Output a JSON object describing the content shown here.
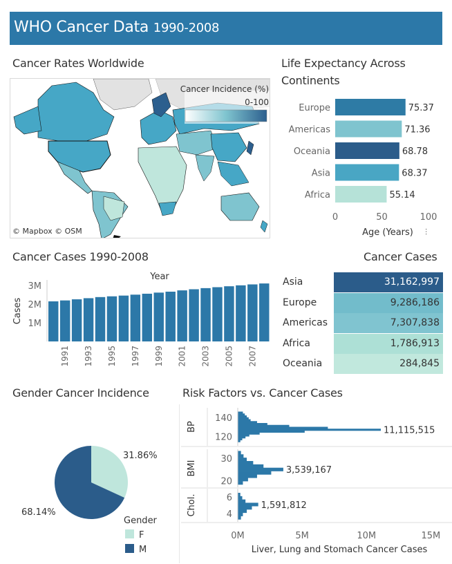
{
  "header": {
    "title": "WHO Cancer Data",
    "years": "1990-2008"
  },
  "map": {
    "title": "Cancer Rates Worldwide",
    "legend_title": "Cancer Incidence (%)",
    "legend_range": "0-100",
    "attribution": "© Mapbox © OSM",
    "colors": {
      "ocean": "#ffffff",
      "land_nodata": "#e2e2e2",
      "low": "#bfe6dc",
      "mid": "#46a7c6",
      "high": "#2c5f8e"
    }
  },
  "life_expectancy": {
    "title_line1": "Life Expectancy Across",
    "title_line2": "Continents",
    "chart_data": {
      "type": "bar",
      "orientation": "horizontal",
      "categories": [
        "Europe",
        "Americas",
        "Oceania",
        "Asia",
        "Africa"
      ],
      "values": [
        75.37,
        71.36,
        68.78,
        68.37,
        55.14
      ],
      "value_labels": [
        "75.37",
        "71.36",
        "68.78",
        "68.37",
        "55.14"
      ],
      "colors": [
        "#2e7ba5",
        "#7fc4cf",
        "#2b5c8a",
        "#49a6c4",
        "#b6e2d8"
      ],
      "xlabel": "Age (Years)",
      "xlim": [
        0,
        100
      ],
      "xticks": [
        "0",
        "50",
        "100"
      ]
    }
  },
  "cases_by_year": {
    "title": "Cancer Cases 1990-2008",
    "chart_data": {
      "type": "bar",
      "x": [
        1990,
        1991,
        1992,
        1993,
        1994,
        1995,
        1996,
        1997,
        1998,
        1999,
        2000,
        2001,
        2002,
        2003,
        2004,
        2005,
        2006,
        2007,
        2008
      ],
      "values": [
        2150000,
        2200000,
        2260000,
        2320000,
        2380000,
        2420000,
        2460000,
        2510000,
        2560000,
        2620000,
        2670000,
        2740000,
        2800000,
        2860000,
        2910000,
        2960000,
        3010000,
        3060000,
        3110000
      ],
      "xlabel": "Year",
      "ylabel": "Cases",
      "ylim": [
        0,
        3300000
      ],
      "yticks": [
        {
          "v": 1000000,
          "label": "1M"
        },
        {
          "v": 2000000,
          "label": "2M"
        },
        {
          "v": 3000000,
          "label": "3M"
        }
      ],
      "xtick_labels": [
        "1991",
        "1993",
        "1995",
        "1997",
        "1999",
        "2001",
        "2003",
        "2005",
        "2007"
      ],
      "color": "#2c78a8"
    }
  },
  "cases_table": {
    "title": "Cancer Cases",
    "chart_data": {
      "type": "table",
      "rows": [
        {
          "region": "Asia",
          "value": "31,162,997",
          "color": "#2b5c8a",
          "text_color": "#ffffff"
        },
        {
          "region": "Europe",
          "value": "9,286,186",
          "color": "#72bccb",
          "text_color": "#333333"
        },
        {
          "region": "Americas",
          "value": "7,307,838",
          "color": "#80c4d0",
          "text_color": "#333333"
        },
        {
          "region": "Africa",
          "value": "1,786,913",
          "color": "#ade0d6",
          "text_color": "#333333"
        },
        {
          "region": "Oceania",
          "value": "284,845",
          "color": "#c1e8dd",
          "text_color": "#333333"
        }
      ]
    }
  },
  "gender": {
    "title": "Gender Cancer Incidence",
    "chart_data": {
      "type": "pie",
      "categories": [
        "F",
        "M"
      ],
      "values": [
        31.86,
        68.14
      ],
      "labels": [
        "31.86%",
        "68.14%"
      ],
      "colors": [
        "#bfe6dc",
        "#2b5c8a"
      ],
      "legend_title": "Gender"
    }
  },
  "risk": {
    "title": "Risk Factors vs. Cancer Cases",
    "chart_data": {
      "type": "bar",
      "orientation": "horizontal",
      "xlabel": "Liver, Lung and Stomach Cancer Cases",
      "xlim": [
        0,
        16000000
      ],
      "xticks": [
        {
          "v": 0,
          "label": "0M"
        },
        {
          "v": 5000000,
          "label": "5M"
        },
        {
          "v": 10000000,
          "label": "10M"
        },
        {
          "v": 15000000,
          "label": "15M"
        }
      ],
      "color": "#2c78a8",
      "panels": [
        {
          "name": "BP",
          "ylim": [
            110,
            150
          ],
          "yticks": [
            {
              "v": 120,
              "label": "120"
            },
            {
              "v": 140,
              "label": "140"
            }
          ],
          "total_label": "11,115,515",
          "bins": [
            [
              145,
              400000
            ],
            [
              143,
              550000
            ],
            [
              141,
              700000
            ],
            [
              139,
              850000
            ],
            [
              137,
              1000000
            ],
            [
              135,
              1500000
            ],
            [
              133,
              2300000
            ],
            [
              131,
              4000000
            ],
            [
              129,
              7000000
            ],
            [
              127,
              11115515
            ],
            [
              125,
              5200000
            ],
            [
              123,
              1700000
            ],
            [
              121,
              900000
            ],
            [
              119,
              600000
            ],
            [
              117,
              350000
            ],
            [
              115,
              200000
            ]
          ]
        },
        {
          "name": "BMI",
          "ylim": [
            17,
            34
          ],
          "yticks": [
            {
              "v": 20,
              "label": "20"
            },
            {
              "v": 30,
              "label": "30"
            }
          ],
          "total_label": "3,539,167",
          "bins": [
            [
              32.5,
              250000
            ],
            [
              31,
              450000
            ],
            [
              29.5,
              700000
            ],
            [
              28,
              1200000
            ],
            [
              26.5,
              2000000
            ],
            [
              25,
              3539167
            ],
            [
              23.5,
              2600000
            ],
            [
              22,
              1500000
            ],
            [
              20.5,
              800000
            ],
            [
              19,
              400000
            ]
          ]
        },
        {
          "name": "Chol.",
          "ylim": [
            3,
            7
          ],
          "yticks": [
            {
              "v": 4,
              "label": "4"
            },
            {
              "v": 6,
              "label": "6"
            }
          ],
          "total_label": "1,591,812",
          "bins": [
            [
              6.3,
              200000
            ],
            [
              5.9,
              350000
            ],
            [
              5.5,
              600000
            ],
            [
              5.1,
              1591812
            ],
            [
              4.7,
              1100000
            ],
            [
              4.3,
              700000
            ],
            [
              3.9,
              400000
            ],
            [
              3.5,
              250000
            ]
          ]
        }
      ]
    }
  }
}
